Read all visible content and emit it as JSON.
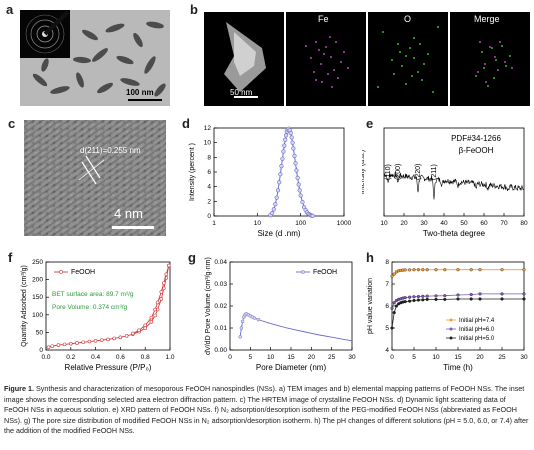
{
  "panels": {
    "a": {
      "label": "a",
      "scalebar": "100 nm"
    },
    "b": {
      "label": "b",
      "scalebar": "50 nm",
      "maps": [
        "Fe",
        "O",
        "Merge"
      ]
    },
    "c": {
      "label": "c",
      "annotation": "d(211)=0.255 nm",
      "scalebar": "4 nm"
    },
    "d": {
      "label": "d"
    },
    "e": {
      "label": "e",
      "reference": "PDF#34-1266",
      "phase": "β-FeOOH",
      "peaks": [
        "(110)",
        "(200)",
        "(220)",
        "(211)"
      ]
    },
    "f": {
      "label": "f",
      "annotations": [
        "BET surface area: 89.7 m²/g",
        "Pore Volume: 0.374 cm³/g"
      ]
    },
    "g": {
      "label": "g"
    },
    "h": {
      "label": "h"
    }
  },
  "caption": {
    "lead": "Figure 1.",
    "text": "Synthesis and characterization of mesoporous FeOOH nanospindles (NSs). a) TEM images and b) elemental mapping patterns of FeOOH NSs. The inset image shows the corresponding selected area electron diffraction pattern. c) The HRTEM image of crystalline FeOOH NSs. d) Dynamic light scattering data of FeOOH NSs in aqueous solution. e) XRD pattern of FeOOH NSs. f) N₂ adsorption/desorption isotherm of the PEG-modified FeOOH NSs (abbreviated as FeOOH NSs). g) The pore size distribution of modified FeOOH NSs in N₂ adsorption/desorption isotherm. h) The pH changes of different solutions (pH = 5.0, 6.0, or 7.4) after the addition of the modified FeOOH NSs."
  },
  "chart_data": [
    {
      "id": "d",
      "type": "line",
      "xlabel": "Size (d .nm)",
      "ylabel": "Intensity (percent )",
      "xscale": "log",
      "xlim": [
        1,
        1000
      ],
      "ylim": [
        0,
        12
      ],
      "xticks": [
        "1",
        "10",
        "100",
        "1000"
      ],
      "yticks": [
        "0",
        "2",
        "4",
        "6",
        "8",
        "10",
        "12"
      ],
      "x": [
        20,
        22,
        24,
        26,
        28,
        30,
        32,
        34,
        36,
        38,
        40,
        42,
        44,
        46,
        48,
        50,
        53,
        56,
        59,
        62,
        65,
        68,
        72,
        76,
        80,
        85,
        90,
        95,
        100,
        110,
        120,
        130,
        140,
        150,
        160,
        170,
        180,
        190
      ],
      "values": [
        0.1,
        0.4,
        0.9,
        1.6,
        2.5,
        3.5,
        4.6,
        5.7,
        6.8,
        7.8,
        8.8,
        9.6,
        10.4,
        11.0,
        11.5,
        11.8,
        11.9,
        11.7,
        11.3,
        10.7,
        10.0,
        9.2,
        8.2,
        7.2,
        6.2,
        5.2,
        4.3,
        3.5,
        2.8,
        1.9,
        1.2,
        0.8,
        0.5,
        0.3,
        0.2,
        0.1,
        0.05,
        0.02
      ],
      "grid": false
    },
    {
      "id": "e",
      "type": "line",
      "xlabel": "Two-theta degree",
      "ylabel": "Intensity (a.u.)",
      "xlim": [
        10,
        80
      ],
      "xticks": [
        "10",
        "20",
        "30",
        "40",
        "50",
        "60",
        "70",
        "80"
      ],
      "peak_positions": [
        12,
        17,
        27,
        35
      ],
      "grid": false
    },
    {
      "id": "f",
      "type": "line",
      "xlabel": "Relative Pressure (P/P₀)",
      "ylabel": "Quantity Adsorbed (cm³/g)",
      "xlim": [
        0,
        1.0
      ],
      "ylim": [
        0,
        250
      ],
      "xticks": [
        "0.0",
        "0.2",
        "0.4",
        "0.6",
        "0.8",
        "1.0"
      ],
      "yticks": [
        "0",
        "50",
        "100",
        "150",
        "200",
        "250"
      ],
      "series": [
        {
          "name": "FeOOH",
          "x": [
            0.02,
            0.05,
            0.1,
            0.15,
            0.2,
            0.25,
            0.3,
            0.35,
            0.4,
            0.45,
            0.5,
            0.55,
            0.6,
            0.65,
            0.7,
            0.75,
            0.8,
            0.85,
            0.88,
            0.9,
            0.93,
            0.95,
            0.97,
            0.99
          ],
          "values": [
            8,
            11,
            14,
            16,
            18,
            20,
            22,
            24,
            26,
            28,
            30,
            33,
            36,
            40,
            45,
            52,
            62,
            80,
            98,
            115,
            145,
            175,
            205,
            240
          ]
        },
        {
          "x": [
            0.99,
            0.97,
            0.95,
            0.93,
            0.9,
            0.88,
            0.85,
            0.8,
            0.75,
            0.7
          ],
          "values": [
            240,
            215,
            190,
            165,
            135,
            115,
            92,
            70,
            56,
            47
          ]
        }
      ],
      "grid": false
    },
    {
      "id": "g",
      "type": "line",
      "xlabel": "Pore Diameter (nm)",
      "ylabel": "dV/dD Pore Volume (cm³/g·nm)",
      "xlim": [
        0,
        30
      ],
      "ylim": [
        0,
        0.04
      ],
      "xticks": [
        "0",
        "5",
        "10",
        "15",
        "20",
        "25",
        "30"
      ],
      "yticks": [
        "0.00",
        "0.01",
        "0.02",
        "0.03",
        "0.04"
      ],
      "series": [
        {
          "name": "FeOOH",
          "x": [
            2.5,
            2.8,
            3.1,
            3.4,
            3.7,
            4,
            4.5,
            5,
            5.5,
            6,
            7,
            8,
            9,
            10,
            12,
            14,
            16,
            18,
            20,
            22,
            25,
            28,
            30
          ],
          "values": [
            0.006,
            0.01,
            0.013,
            0.015,
            0.016,
            0.0165,
            0.016,
            0.0155,
            0.015,
            0.0145,
            0.0138,
            0.0132,
            0.0126,
            0.012,
            0.011,
            0.01,
            0.0092,
            0.0084,
            0.0076,
            0.0068,
            0.0058,
            0.0048,
            0.0042
          ]
        }
      ],
      "grid": false
    },
    {
      "id": "h",
      "type": "line",
      "xlabel": "Time (h)",
      "ylabel": "pH value variation",
      "xlim": [
        0,
        30
      ],
      "ylim": [
        4,
        8
      ],
      "xticks": [
        "0",
        "5",
        "10",
        "15",
        "20",
        "25",
        "30"
      ],
      "yticks": [
        "4",
        "5",
        "6",
        "7",
        "8"
      ],
      "legend": "bottom-right",
      "series": [
        {
          "name": "Initial pH=7.4",
          "color": "#f39c34",
          "x": [
            0,
            0.5,
            1,
            1.5,
            2,
            2.5,
            3,
            4,
            5,
            6,
            7,
            8,
            10,
            12,
            15,
            18,
            20,
            25,
            30
          ],
          "values": [
            7.35,
            7.45,
            7.55,
            7.6,
            7.62,
            7.63,
            7.64,
            7.64,
            7.65,
            7.65,
            7.65,
            7.65,
            7.65,
            7.65,
            7.65,
            7.65,
            7.65,
            7.65,
            7.65
          ]
        },
        {
          "name": "Initial pH=6.0",
          "color": "#7b5bb6",
          "x": [
            0,
            0.5,
            1,
            1.5,
            2,
            2.5,
            3,
            4,
            5,
            6,
            7,
            8,
            10,
            12,
            15,
            18,
            20,
            25,
            30
          ],
          "values": [
            5.9,
            6.15,
            6.25,
            6.3,
            6.33,
            6.36,
            6.38,
            6.4,
            6.42,
            6.43,
            6.44,
            6.45,
            6.46,
            6.47,
            6.5,
            6.52,
            6.55,
            6.55,
            6.55
          ]
        },
        {
          "name": "Initial pH=5.0",
          "color": "#222222",
          "x": [
            0,
            0.5,
            1,
            1.5,
            2,
            2.5,
            3,
            4,
            5,
            6,
            7,
            8,
            10,
            12,
            15,
            18,
            20,
            25,
            30
          ],
          "values": [
            5.0,
            5.7,
            6.0,
            6.1,
            6.15,
            6.18,
            6.2,
            6.22,
            6.25,
            6.27,
            6.28,
            6.3,
            6.3,
            6.3,
            6.32,
            6.32,
            6.32,
            6.32,
            6.32
          ]
        }
      ],
      "grid": false
    }
  ]
}
